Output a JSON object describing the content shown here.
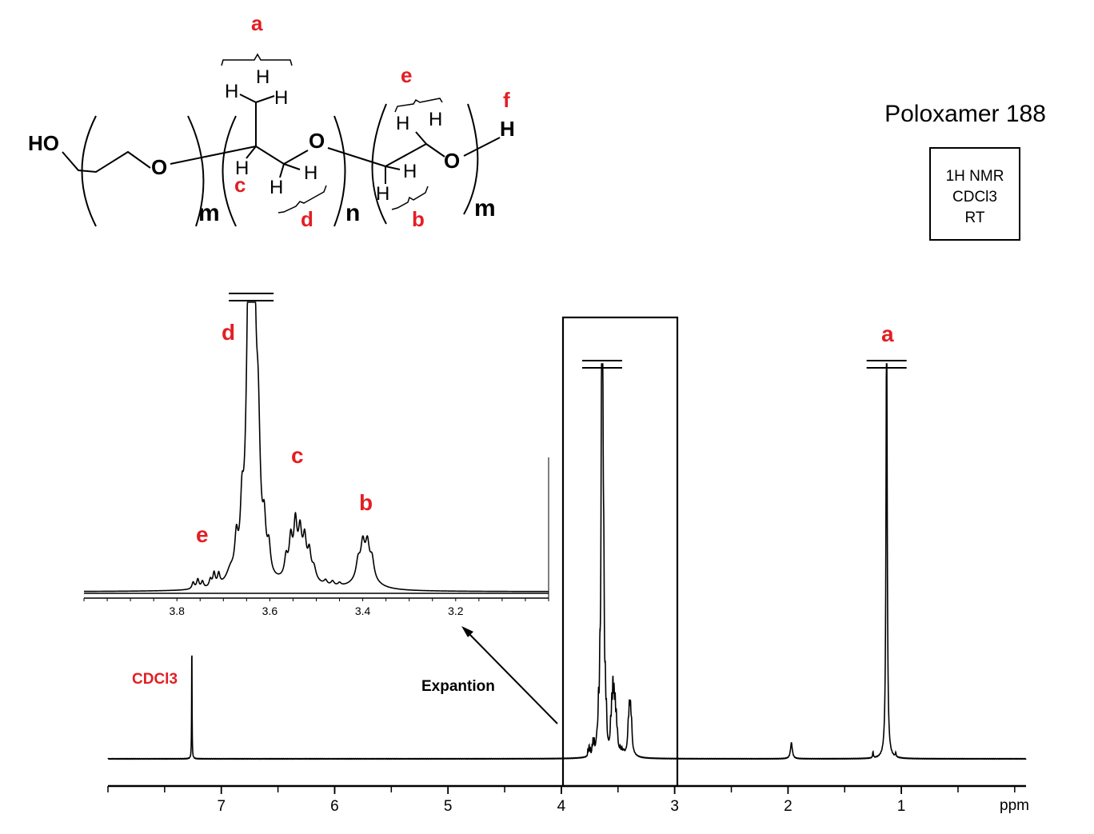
{
  "title": "Poloxamer 188",
  "conditions": [
    "1H NMR",
    "CDCl3",
    "RT"
  ],
  "structure": {
    "atoms": [
      "HO",
      "O",
      "H",
      "H",
      "H",
      "H",
      "H",
      "H",
      "O",
      "H",
      "H",
      "H",
      "H",
      "O",
      "H"
    ],
    "repeat_labels": [
      "m",
      "n",
      "m"
    ],
    "proton_labels": {
      "a": "a",
      "b": "b",
      "c": "c",
      "d": "d",
      "e": "e",
      "f": "f"
    }
  },
  "annotations": {
    "solvent": "CDCl3",
    "expansion": "Expantion",
    "peak_labels": {
      "a": "a",
      "b": "b",
      "c": "c",
      "d": "d",
      "e": "e"
    }
  },
  "colors": {
    "label": "#e31e24",
    "trace": "#000000"
  },
  "chart_data": [
    {
      "type": "line",
      "name": "main spectrum",
      "xlabel": "ppm",
      "xlim": [
        8.0,
        -0.1
      ],
      "reversed_x": true,
      "xticks": [
        7,
        6,
        5,
        4,
        3,
        2,
        1
      ],
      "minor_tick_step": 0.5,
      "grid": false,
      "clipped_peaks_ppm": [
        3.64,
        1.13
      ],
      "expansion_region_ppm": [
        4.0,
        3.0
      ],
      "peaks": [
        {
          "ppm": 7.26,
          "height": 31,
          "width": 0.002,
          "label": "CDCl3"
        },
        {
          "ppm": 1.13,
          "height": 120,
          "width": 0.006,
          "label": "a"
        },
        {
          "ppm": 1.97,
          "height": 4,
          "width": 0.01
        },
        {
          "ppm": 1.25,
          "height": 1.5,
          "width": 0.004
        },
        {
          "ppm": 1.05,
          "height": 1,
          "width": 0.004
        },
        {
          "ppm": 3.645,
          "height": 80,
          "width": 0.006,
          "label": "d"
        },
        {
          "ppm": 3.635,
          "height": 80,
          "width": 0.006
        },
        {
          "ppm": 3.625,
          "height": 30,
          "width": 0.005
        },
        {
          "ppm": 3.66,
          "height": 14,
          "width": 0.004
        },
        {
          "ppm": 3.672,
          "height": 9,
          "width": 0.004
        },
        {
          "ppm": 3.612,
          "height": 11,
          "width": 0.004
        },
        {
          "ppm": 3.602,
          "height": 7,
          "width": 0.004
        },
        {
          "ppm": 3.685,
          "height": 3,
          "width": 0.01
        },
        {
          "ppm": 3.545,
          "height": 12,
          "width": 0.004,
          "label": "c"
        },
        {
          "ppm": 3.555,
          "height": 9,
          "width": 0.004
        },
        {
          "ppm": 3.535,
          "height": 9,
          "width": 0.004
        },
        {
          "ppm": 3.525,
          "height": 8,
          "width": 0.004
        },
        {
          "ppm": 3.515,
          "height": 6,
          "width": 0.004
        },
        {
          "ppm": 3.565,
          "height": 5,
          "width": 0.004
        },
        {
          "ppm": 3.505,
          "height": 3,
          "width": 0.005
        },
        {
          "ppm": 3.535,
          "height": 6,
          "width": 0.025
        },
        {
          "ppm": 3.4,
          "height": 8,
          "width": 0.005,
          "label": "b"
        },
        {
          "ppm": 3.39,
          "height": 8,
          "width": 0.005
        },
        {
          "ppm": 3.41,
          "height": 4.5,
          "width": 0.005
        },
        {
          "ppm": 3.38,
          "height": 5,
          "width": 0.005
        },
        {
          "ppm": 3.395,
          "height": 4,
          "width": 0.025
        },
        {
          "ppm": 3.755,
          "height": 2.5,
          "width": 0.003,
          "label": "e"
        },
        {
          "ppm": 3.765,
          "height": 1.8,
          "width": 0.003
        },
        {
          "ppm": 3.745,
          "height": 1.8,
          "width": 0.003
        },
        {
          "ppm": 3.72,
          "height": 3.5,
          "width": 0.003
        },
        {
          "ppm": 3.71,
          "height": 3,
          "width": 0.003
        },
        {
          "ppm": 3.728,
          "height": 2,
          "width": 0.003
        },
        {
          "ppm": 3.48,
          "height": 1.2,
          "width": 0.004
        },
        {
          "ppm": 3.465,
          "height": 1.2,
          "width": 0.004
        },
        {
          "ppm": 3.45,
          "height": 0.8,
          "width": 0.004
        }
      ]
    },
    {
      "type": "line",
      "name": "expansion inset",
      "xlim": [
        4.0,
        3.0
      ],
      "reversed_x": true,
      "xticks": [
        3.8,
        3.6,
        3.4,
        3.2
      ],
      "minor_tick_step": 0.05,
      "grid": false,
      "clipped_peaks_ppm": [
        3.64
      ]
    }
  ]
}
